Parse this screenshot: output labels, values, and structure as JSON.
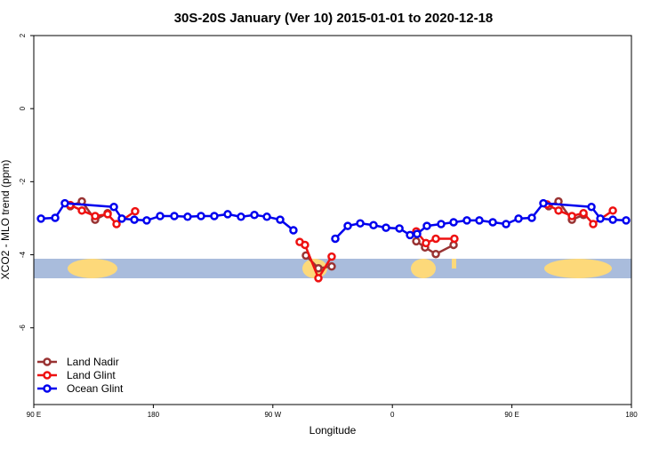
{
  "chart_data": {
    "type": "line",
    "title": "30S-20S January (Ver 10)   2015-01-01 to 2020-12-18",
    "x_label": "Longitude",
    "y_label": "XCO2 - MLO trend (ppm)",
    "xlim": [
      90,
      540
    ],
    "xticks": [
      {
        "value": 90,
        "label": "90 E"
      },
      {
        "value": 180,
        "label": "180"
      },
      {
        "value": 270,
        "label": "90 W"
      },
      {
        "value": 360,
        "label": "0"
      },
      {
        "value": 450,
        "label": "90 E"
      },
      {
        "value": 540,
        "label": "180"
      }
    ],
    "ylim": [
      -8.1,
      2
    ],
    "yticks": [
      2,
      0,
      -2,
      -4,
      -6
    ],
    "legend": "bottom-left",
    "series": [
      {
        "name": "Land Nadir",
        "color": "#993333",
        "x": [
          117.5,
          126.2,
          136.2,
          145.6,
          null,
          294.9,
          304.3,
          314.3,
          null,
          378.0,
          384.6,
          392.7,
          406.1,
          null,
          477.7,
          485.1,
          495.2,
          503.9
        ],
        "values": [
          -2.67,
          -2.54,
          -3.04,
          -2.86,
          null,
          -4.02,
          -4.37,
          -4.32,
          null,
          -3.63,
          -3.8,
          -3.98,
          -3.73,
          null,
          -2.67,
          -2.54,
          -3.04,
          -2.91
        ]
      },
      {
        "name": "Land Glint",
        "color": "#ee1111",
        "x": [
          117.5,
          126.2,
          136.2,
          145.6,
          152.3,
          166.3,
          null,
          290.2,
          294.2,
          304.3,
          314.3,
          null,
          378.0,
          385.3,
          392.7,
          406.7,
          null,
          476.4,
          485.1,
          495.2,
          503.9,
          511.2,
          526.0
        ],
        "values": [
          -2.64,
          -2.79,
          -2.94,
          -2.89,
          -3.16,
          -2.81,
          null,
          -3.65,
          -3.73,
          -4.64,
          -4.05,
          null,
          -3.36,
          -3.68,
          -3.56,
          -3.56,
          null,
          -2.62,
          -2.79,
          -2.94,
          -2.86,
          -3.16,
          -2.79
        ]
      },
      {
        "name": "Ocean Glint",
        "color": "#0000ee",
        "x": [
          95.4,
          106.1,
          113.4,
          150.3,
          156.3,
          165.7,
          175.0,
          185.1,
          195.8,
          205.8,
          215.9,
          225.9,
          236.0,
          246.0,
          256.1,
          265.5,
          275.5,
          285.5,
          null,
          317.0,
          326.4,
          335.8,
          345.8,
          355.2,
          365.3,
          373.3,
          378.6,
          386.0,
          396.7,
          406.1,
          416.1,
          425.5,
          435.6,
          445.6,
          455.0,
          465.0,
          473.7,
          509.9,
          516.6,
          526.0,
          536.0
        ],
        "values": [
          -3.01,
          -2.99,
          -2.59,
          -2.69,
          -3.01,
          -3.04,
          -3.06,
          -2.94,
          -2.94,
          -2.96,
          -2.94,
          -2.94,
          -2.89,
          -2.96,
          -2.91,
          -2.96,
          -3.04,
          -3.33,
          null,
          -3.56,
          -3.21,
          -3.14,
          -3.19,
          -3.26,
          -3.28,
          -3.46,
          -3.43,
          -3.21,
          -3.16,
          -3.11,
          -3.06,
          -3.06,
          -3.11,
          -3.16,
          -3.01,
          -2.99,
          -2.59,
          -2.69,
          -3.01,
          -3.04,
          -3.06
        ]
      }
    ]
  }
}
